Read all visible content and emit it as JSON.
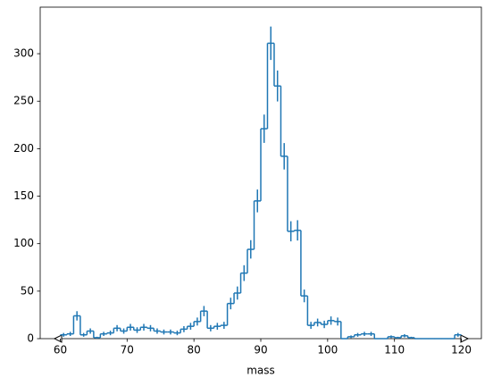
{
  "chart_data": {
    "type": "histogram",
    "x_label": "mass",
    "color": "#1f77b4",
    "bins": [
      60,
      61,
      62,
      63,
      64,
      65,
      66,
      67,
      68,
      69,
      70,
      71,
      72,
      73,
      74,
      75,
      76,
      77,
      78,
      79,
      80,
      81,
      82,
      83,
      84,
      85,
      86,
      87,
      88,
      89,
      90,
      91,
      92,
      93,
      94,
      95,
      96,
      97,
      98,
      99,
      100,
      101,
      102,
      103,
      104,
      105,
      106,
      107,
      108,
      109,
      110,
      111,
      112,
      113,
      114,
      115,
      116,
      117,
      118,
      119,
      120
    ],
    "values": [
      4,
      5,
      24,
      4,
      8,
      1,
      5,
      6,
      11,
      8,
      12,
      9,
      12,
      11,
      8,
      7,
      7,
      6,
      10,
      13,
      18,
      29,
      11,
      13,
      14,
      37,
      48,
      69,
      94,
      145,
      221,
      311,
      266,
      192,
      113,
      114,
      45,
      14,
      17,
      15,
      19,
      18,
      0,
      2,
      4,
      5,
      5,
      0,
      0,
      2,
      1,
      3,
      1,
      0,
      0,
      0,
      0,
      0,
      0,
      4
    ],
    "errors": [
      2,
      2.2,
      4.9,
      2,
      2.8,
      1,
      2.2,
      2.4,
      3.3,
      2.8,
      3.5,
      3,
      3.5,
      3.3,
      2.8,
      2.6,
      2.6,
      2.4,
      3.2,
      3.6,
      4.2,
      5.4,
      3.3,
      3.6,
      3.7,
      6.1,
      6.9,
      8.3,
      9.7,
      12,
      14.9,
      17.6,
      16.3,
      13.9,
      10.6,
      10.7,
      6.7,
      3.7,
      4.1,
      3.9,
      4.4,
      4.2,
      0,
      1.4,
      2,
      2.2,
      2.2,
      0,
      0,
      1.4,
      1,
      1.7,
      1,
      0,
      0,
      0,
      0,
      0,
      0,
      2
    ],
    "xlim": [
      57,
      123
    ],
    "xticks": [
      60,
      70,
      80,
      90,
      100,
      110,
      120
    ],
    "ylim": [
      0,
      349
    ],
    "yticks": [
      0,
      50,
      100,
      150,
      200,
      250,
      300
    ]
  }
}
